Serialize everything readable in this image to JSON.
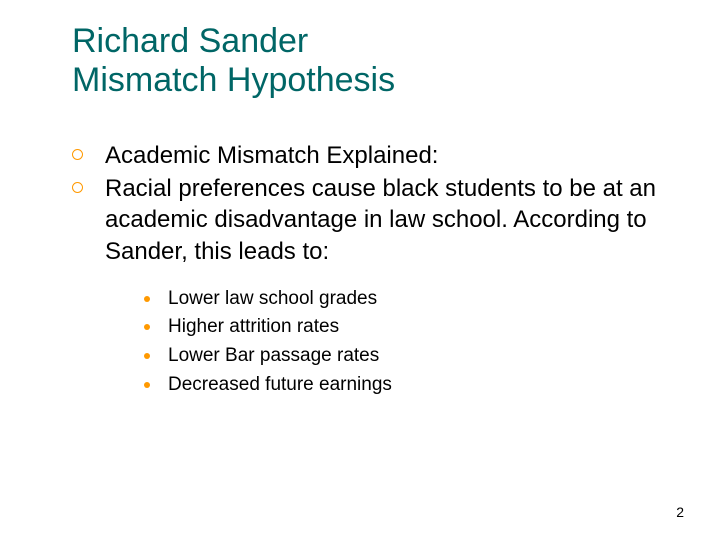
{
  "title_line1": "Richard Sander",
  "title_line2": "Mismatch Hypothesis",
  "bullets": {
    "b0": "Academic Mismatch Explained:",
    "b1": "Racial preferences cause black students to be at an academic disadvantage in law school. According to Sander, this leads to:"
  },
  "sub_bullets": {
    "s0": "Lower law school grades",
    "s1": "Higher attrition rates",
    "s2": "Lower Bar passage rates",
    "s3": "Decreased future earnings"
  },
  "page_number": "2",
  "colors": {
    "title": "#006666",
    "bullet_outline": "#ff9900",
    "bullet_fill": "#ff9900",
    "text": "#000000",
    "background": "#ffffff"
  },
  "fonts": {
    "title_size_pt": 34,
    "level1_size_pt": 24,
    "level2_size_pt": 19,
    "pagenum_size_pt": 14
  }
}
